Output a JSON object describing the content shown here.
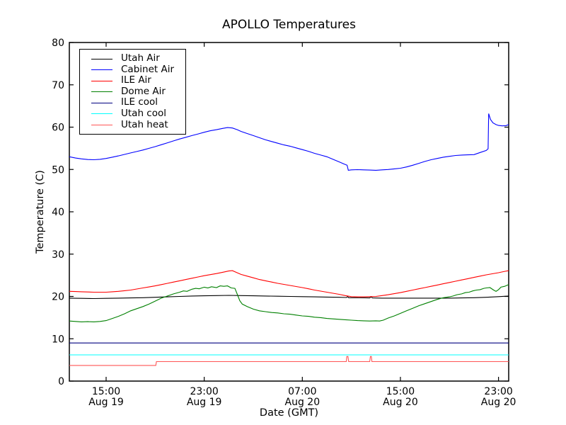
{
  "figure": {
    "title": "APOLLO Temperatures",
    "xlabel": "Date (GMT)",
    "ylabel": "Temperature (C)"
  },
  "chart_data": {
    "type": "line",
    "title": "APOLLO Temperatures",
    "xlabel": "Date (GMT)",
    "ylabel": "Temperature (C)",
    "grid": false,
    "legend_position": "upper-left",
    "x_axis": {
      "unit": "hours since Aug 19 12:00 GMT",
      "range": [
        0,
        35.83
      ],
      "ticks": [
        {
          "t": 3,
          "line1": "15:00",
          "line2": "Aug 19"
        },
        {
          "t": 11,
          "line1": "23:00",
          "line2": "Aug 19"
        },
        {
          "t": 19,
          "line1": "07:00",
          "line2": "Aug 20"
        },
        {
          "t": 27,
          "line1": "15:00",
          "line2": "Aug 20"
        },
        {
          "t": 35,
          "line1": "23:00",
          "line2": "Aug 20"
        }
      ]
    },
    "y_axis": {
      "range": [
        0,
        80
      ],
      "ticks": [
        0,
        10,
        20,
        30,
        40,
        50,
        60,
        70,
        80
      ]
    },
    "series": [
      {
        "name": "Utah Air",
        "color": "#000000",
        "points": [
          [
            0,
            19.6
          ],
          [
            1,
            19.55
          ],
          [
            2,
            19.5
          ],
          [
            3,
            19.55
          ],
          [
            4,
            19.6
          ],
          [
            5,
            19.65
          ],
          [
            6,
            19.7
          ],
          [
            7,
            19.8
          ],
          [
            8,
            19.9
          ],
          [
            9,
            20.0
          ],
          [
            10,
            20.1
          ],
          [
            11,
            20.15
          ],
          [
            12,
            20.2
          ],
          [
            13,
            20.25
          ],
          [
            14,
            20.2
          ],
          [
            15,
            20.15
          ],
          [
            16,
            20.1
          ],
          [
            17,
            20.05
          ],
          [
            18,
            20.0
          ],
          [
            19,
            19.95
          ],
          [
            20,
            19.9
          ],
          [
            21,
            19.85
          ],
          [
            22,
            19.8
          ],
          [
            22.6,
            19.75
          ],
          [
            22.7,
            19.95
          ],
          [
            22.78,
            19.7
          ],
          [
            23.5,
            19.7
          ],
          [
            24.5,
            19.65
          ],
          [
            24.6,
            19.9
          ],
          [
            24.72,
            19.65
          ],
          [
            25.5,
            19.6
          ],
          [
            27,
            19.6
          ],
          [
            29,
            19.6
          ],
          [
            31,
            19.6
          ],
          [
            32,
            19.65
          ],
          [
            33,
            19.7
          ],
          [
            34,
            19.8
          ],
          [
            35,
            19.95
          ],
          [
            35.83,
            20.1
          ]
        ]
      },
      {
        "name": "Cabinet Air",
        "color": "#0000ff",
        "points": [
          [
            0,
            53.0
          ],
          [
            0.5,
            52.7
          ],
          [
            1,
            52.5
          ],
          [
            1.5,
            52.35
          ],
          [
            2,
            52.3
          ],
          [
            2.5,
            52.4
          ],
          [
            3,
            52.6
          ],
          [
            3.5,
            52.9
          ],
          [
            4,
            53.2
          ],
          [
            4.5,
            53.55
          ],
          [
            5,
            53.9
          ],
          [
            5.5,
            54.25
          ],
          [
            6,
            54.6
          ],
          [
            6.5,
            55.0
          ],
          [
            7,
            55.4
          ],
          [
            7.5,
            55.85
          ],
          [
            8,
            56.3
          ],
          [
            8.5,
            56.75
          ],
          [
            9,
            57.2
          ],
          [
            9.5,
            57.6
          ],
          [
            10,
            58.0
          ],
          [
            10.5,
            58.4
          ],
          [
            11,
            58.8
          ],
          [
            11.5,
            59.15
          ],
          [
            12,
            59.4
          ],
          [
            12.5,
            59.7
          ],
          [
            12.9,
            59.9
          ],
          [
            13.3,
            59.8
          ],
          [
            13.7,
            59.4
          ],
          [
            14,
            59.0
          ],
          [
            14.5,
            58.5
          ],
          [
            15,
            58.0
          ],
          [
            15.5,
            57.5
          ],
          [
            16,
            57.0
          ],
          [
            16.5,
            56.6
          ],
          [
            17,
            56.2
          ],
          [
            17.5,
            55.8
          ],
          [
            18,
            55.5
          ],
          [
            18.5,
            55.1
          ],
          [
            19,
            54.7
          ],
          [
            19.5,
            54.3
          ],
          [
            20,
            53.8
          ],
          [
            20.5,
            53.4
          ],
          [
            21,
            53.0
          ],
          [
            21.5,
            52.4
          ],
          [
            22,
            51.8
          ],
          [
            22.4,
            51.3
          ],
          [
            22.65,
            51.0
          ],
          [
            22.75,
            49.8
          ],
          [
            23,
            49.9
          ],
          [
            23.5,
            49.95
          ],
          [
            24,
            49.9
          ],
          [
            24.5,
            49.85
          ],
          [
            25,
            49.8
          ],
          [
            25.5,
            49.9
          ],
          [
            26,
            50.0
          ],
          [
            26.5,
            50.15
          ],
          [
            27,
            50.3
          ],
          [
            27.5,
            50.6
          ],
          [
            28,
            51.0
          ],
          [
            28.5,
            51.45
          ],
          [
            29,
            51.9
          ],
          [
            29.5,
            52.3
          ],
          [
            30,
            52.6
          ],
          [
            30.5,
            52.9
          ],
          [
            31,
            53.1
          ],
          [
            31.5,
            53.3
          ],
          [
            32,
            53.4
          ],
          [
            32.5,
            53.45
          ],
          [
            33,
            53.5
          ],
          [
            33.5,
            54.0
          ],
          [
            34,
            54.5
          ],
          [
            34.15,
            54.9
          ],
          [
            34.2,
            63.2
          ],
          [
            34.35,
            61.8
          ],
          [
            34.55,
            61.0
          ],
          [
            34.8,
            60.6
          ],
          [
            35,
            60.4
          ],
          [
            35.3,
            60.3
          ],
          [
            35.6,
            60.35
          ],
          [
            35.83,
            60.6
          ]
        ]
      },
      {
        "name": "ILE Air",
        "color": "#ff0000",
        "points": [
          [
            0,
            21.2
          ],
          [
            0.5,
            21.15
          ],
          [
            1,
            21.1
          ],
          [
            1.5,
            21.05
          ],
          [
            2,
            21.0
          ],
          [
            3,
            21.0
          ],
          [
            3.5,
            21.1
          ],
          [
            4,
            21.2
          ],
          [
            4.5,
            21.35
          ],
          [
            5,
            21.5
          ],
          [
            5.5,
            21.75
          ],
          [
            6,
            22.0
          ],
          [
            6.5,
            22.25
          ],
          [
            7,
            22.5
          ],
          [
            7.5,
            22.8
          ],
          [
            8,
            23.1
          ],
          [
            8.5,
            23.4
          ],
          [
            9,
            23.7
          ],
          [
            9.5,
            24.0
          ],
          [
            10,
            24.3
          ],
          [
            10.5,
            24.6
          ],
          [
            11,
            24.9
          ],
          [
            11.5,
            25.15
          ],
          [
            12,
            25.4
          ],
          [
            12.5,
            25.7
          ],
          [
            13,
            26.0
          ],
          [
            13.3,
            26.1
          ],
          [
            13.6,
            25.7
          ],
          [
            14,
            25.2
          ],
          [
            14.5,
            24.8
          ],
          [
            15,
            24.4
          ],
          [
            15.5,
            24.0
          ],
          [
            16,
            23.7
          ],
          [
            16.5,
            23.4
          ],
          [
            17,
            23.1
          ],
          [
            17.5,
            22.85
          ],
          [
            18,
            22.6
          ],
          [
            18.5,
            22.35
          ],
          [
            19,
            22.1
          ],
          [
            19.5,
            21.8
          ],
          [
            20,
            21.5
          ],
          [
            20.5,
            21.25
          ],
          [
            21,
            21.0
          ],
          [
            21.5,
            20.75
          ],
          [
            22,
            20.5
          ],
          [
            22.5,
            20.2
          ],
          [
            23,
            19.95
          ],
          [
            23.5,
            19.9
          ],
          [
            24,
            19.9
          ],
          [
            24.5,
            19.95
          ],
          [
            25,
            20.0
          ],
          [
            25.5,
            20.2
          ],
          [
            26,
            20.4
          ],
          [
            26.5,
            20.65
          ],
          [
            27,
            20.9
          ],
          [
            27.5,
            21.2
          ],
          [
            28,
            21.5
          ],
          [
            28.5,
            21.8
          ],
          [
            29,
            22.1
          ],
          [
            29.5,
            22.4
          ],
          [
            30,
            22.7
          ],
          [
            30.5,
            23.0
          ],
          [
            31,
            23.3
          ],
          [
            31.5,
            23.6
          ],
          [
            32,
            23.9
          ],
          [
            32.5,
            24.2
          ],
          [
            33,
            24.5
          ],
          [
            33.5,
            24.8
          ],
          [
            34,
            25.1
          ],
          [
            34.5,
            25.35
          ],
          [
            35,
            25.6
          ],
          [
            35.4,
            25.85
          ],
          [
            35.83,
            26.1
          ]
        ]
      },
      {
        "name": "Dome Air",
        "color": "#008000",
        "points": [
          [
            0,
            14.2
          ],
          [
            0.5,
            14.1
          ],
          [
            1,
            14.0
          ],
          [
            1.5,
            14.05
          ],
          [
            2,
            14.0
          ],
          [
            2.5,
            14.1
          ],
          [
            3,
            14.3
          ],
          [
            3.5,
            14.8
          ],
          [
            4,
            15.3
          ],
          [
            4.5,
            15.9
          ],
          [
            5,
            16.6
          ],
          [
            5.5,
            17.1
          ],
          [
            6,
            17.6
          ],
          [
            6.5,
            18.2
          ],
          [
            7,
            18.9
          ],
          [
            7.5,
            19.6
          ],
          [
            8,
            20.1
          ],
          [
            8.5,
            20.6
          ],
          [
            9,
            21.0
          ],
          [
            9.3,
            21.3
          ],
          [
            9.6,
            21.2
          ],
          [
            10,
            21.7
          ],
          [
            10.3,
            21.9
          ],
          [
            10.6,
            21.8
          ],
          [
            11,
            22.2
          ],
          [
            11.3,
            22.0
          ],
          [
            11.6,
            22.3
          ],
          [
            12,
            22.1
          ],
          [
            12.3,
            22.5
          ],
          [
            12.6,
            22.4
          ],
          [
            12.9,
            22.5
          ],
          [
            13.2,
            22.0
          ],
          [
            13.5,
            21.9
          ],
          [
            13.7,
            20.5
          ],
          [
            13.9,
            19.0
          ],
          [
            14.1,
            18.2
          ],
          [
            14.5,
            17.6
          ],
          [
            15,
            17.0
          ],
          [
            15.5,
            16.6
          ],
          [
            16,
            16.4
          ],
          [
            16.5,
            16.2
          ],
          [
            17,
            16.1
          ],
          [
            17.5,
            15.9
          ],
          [
            18,
            15.8
          ],
          [
            18.5,
            15.6
          ],
          [
            19,
            15.4
          ],
          [
            19.5,
            15.3
          ],
          [
            20,
            15.1
          ],
          [
            20.5,
            15.0
          ],
          [
            21,
            14.8
          ],
          [
            21.5,
            14.7
          ],
          [
            22,
            14.6
          ],
          [
            22.5,
            14.5
          ],
          [
            23,
            14.4
          ],
          [
            23.5,
            14.3
          ],
          [
            24,
            14.25
          ],
          [
            24.5,
            14.2
          ],
          [
            25,
            14.25
          ],
          [
            25.3,
            14.2
          ],
          [
            25.6,
            14.4
          ],
          [
            26,
            14.9
          ],
          [
            26.5,
            15.4
          ],
          [
            27,
            16.0
          ],
          [
            27.5,
            16.6
          ],
          [
            28,
            17.2
          ],
          [
            28.5,
            17.8
          ],
          [
            29,
            18.3
          ],
          [
            29.5,
            18.8
          ],
          [
            30,
            19.3
          ],
          [
            30.5,
            19.7
          ],
          [
            31,
            19.9
          ],
          [
            31.3,
            20.1
          ],
          [
            31.6,
            20.4
          ],
          [
            32,
            20.6
          ],
          [
            32.3,
            20.9
          ],
          [
            32.6,
            21.0
          ],
          [
            32.9,
            21.3
          ],
          [
            33.2,
            21.5
          ],
          [
            33.5,
            21.6
          ],
          [
            33.8,
            21.9
          ],
          [
            34,
            22.0
          ],
          [
            34.3,
            22.1
          ],
          [
            34.6,
            21.5
          ],
          [
            34.8,
            21.2
          ],
          [
            35,
            21.6
          ],
          [
            35.2,
            22.2
          ],
          [
            35.5,
            22.4
          ],
          [
            35.83,
            22.8
          ]
        ]
      },
      {
        "name": "ILE cool",
        "color": "#000080",
        "points": [
          [
            0,
            9.0
          ],
          [
            35.83,
            9.0
          ]
        ]
      },
      {
        "name": "Utah cool",
        "color": "#00ffff",
        "points": [
          [
            0,
            6.2
          ],
          [
            35.83,
            6.2
          ]
        ]
      },
      {
        "name": "Utah heat",
        "color": "#ff5555",
        "points": [
          [
            0,
            3.7
          ],
          [
            7.05,
            3.7
          ],
          [
            7.1,
            4.6
          ],
          [
            22.58,
            4.6
          ],
          [
            22.63,
            5.8
          ],
          [
            22.72,
            5.8
          ],
          [
            22.78,
            4.6
          ],
          [
            24.5,
            4.6
          ],
          [
            24.55,
            5.8
          ],
          [
            24.63,
            5.8
          ],
          [
            24.68,
            4.6
          ],
          [
            35.83,
            4.6
          ]
        ]
      }
    ]
  }
}
